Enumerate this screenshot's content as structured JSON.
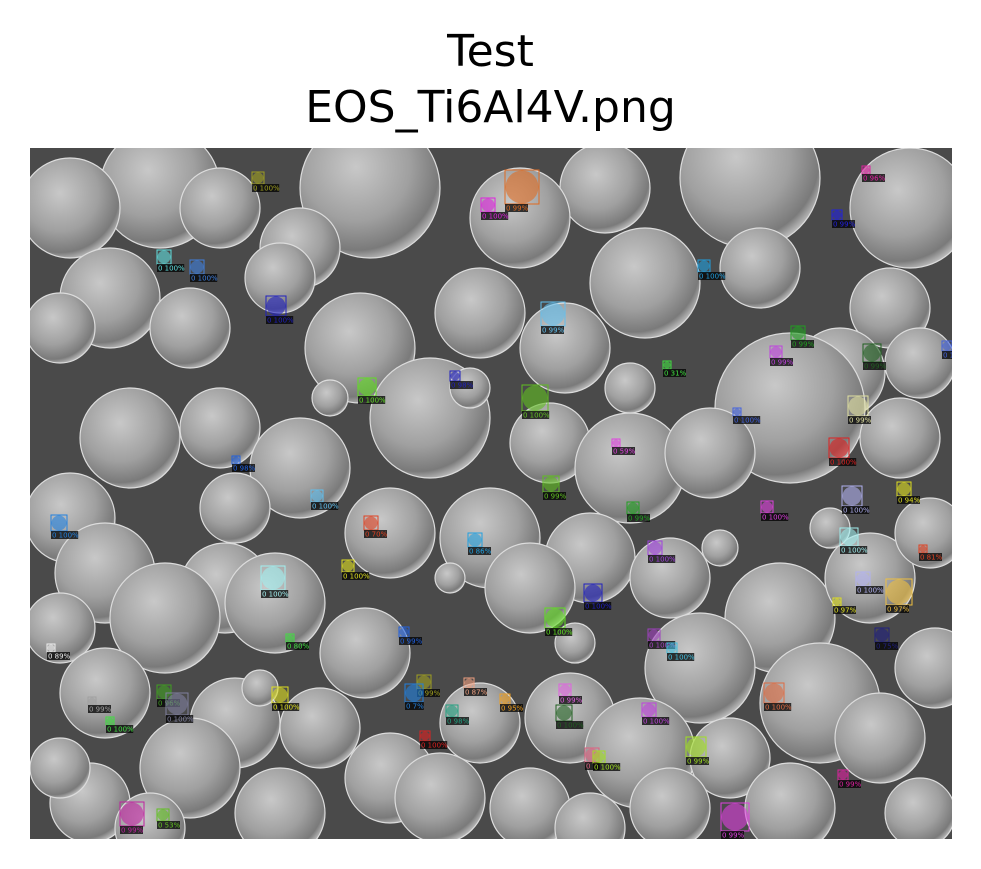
{
  "figure": {
    "title_line1": "Test",
    "title_line2": "EOS_Ti6Al4V.png"
  },
  "image": {
    "description_kind": "SEM micrograph of spherical powder particles with instance-segmentation overlays",
    "background_color": "#4a4a4a"
  },
  "detections": [
    {
      "label": "0 100%",
      "color": "#a0a020"
    },
    {
      "label": "0 99%",
      "color": "#e06a20"
    },
    {
      "label": "0 100%",
      "color": "#e020e0"
    },
    {
      "label": "0 96%",
      "color": "#e020a0"
    },
    {
      "label": "0 99%",
      "color": "#2020e0"
    },
    {
      "label": "0 100%",
      "color": "#60e0e0"
    },
    {
      "label": "0 100%",
      "color": "#4080e0"
    },
    {
      "label": "0 100%",
      "color": "#20a0e0"
    },
    {
      "label": "0 100%",
      "color": "#2020c0"
    },
    {
      "label": "0 99%",
      "color": "#60c0f0"
    },
    {
      "label": "0 99%",
      "color": "#20a020"
    },
    {
      "label": "0 99%",
      "color": "#c040e0"
    },
    {
      "label": "0 99%",
      "color": "#206020"
    },
    {
      "label": "0 100%",
      "color": "#60e020"
    },
    {
      "label": "0 98%",
      "color": "#2020c0"
    },
    {
      "label": "0 100%",
      "color": "#60c020"
    },
    {
      "label": "0 31%",
      "color": "#40e040"
    },
    {
      "label": "0 100%",
      "color": "#4060e0"
    },
    {
      "label": "0 99%",
      "color": "#e0e0a0"
    },
    {
      "label": "0 59%",
      "color": "#e040e0"
    },
    {
      "label": "0 100%",
      "color": "#e02020"
    },
    {
      "label": "0 98%",
      "color": "#2060e0"
    },
    {
      "label": "0 99%",
      "color": "#60c020"
    },
    {
      "label": "0 94%",
      "color": "#e0e020"
    },
    {
      "label": "0 100%",
      "color": "#60c0f0"
    },
    {
      "label": "0 99%",
      "color": "#20a020"
    },
    {
      "label": "0 100%",
      "color": "#e040e0"
    },
    {
      "label": "0 100%",
      "color": "#b0b0f0"
    },
    {
      "label": "0 100%",
      "color": "#2080e0"
    },
    {
      "label": "0 70%",
      "color": "#e04020"
    },
    {
      "label": "0 86%",
      "color": "#20a0e0"
    },
    {
      "label": "0 100%",
      "color": "#a040e0"
    },
    {
      "label": "0 100%",
      "color": "#a0f0f0"
    },
    {
      "label": "0 81%",
      "color": "#e04020"
    },
    {
      "label": "0 100%",
      "color": "#e0e020"
    },
    {
      "label": "0 100%",
      "color": "#a0f0f0"
    },
    {
      "label": "0 100%",
      "color": "#2020c0"
    },
    {
      "label": "0 100%",
      "color": "#b0b0f0"
    },
    {
      "label": "0 97%",
      "color": "#e0e020"
    },
    {
      "label": "0 97%",
      "color": "#f0c040"
    },
    {
      "label": "0 100%",
      "color": "#60e020"
    },
    {
      "label": "0 80%",
      "color": "#40e040"
    },
    {
      "label": "0 99%",
      "color": "#2060e0"
    },
    {
      "label": "0 100%",
      "color": "#a040c0"
    },
    {
      "label": "0 100%",
      "color": "#40c0e0"
    },
    {
      "label": "0 75%",
      "color": "#202080"
    },
    {
      "label": "0 89%",
      "color": "#f0f0f0"
    },
    {
      "label": "0 99%",
      "color": "#a0a0a0"
    },
    {
      "label": "0 96%",
      "color": "#40a020"
    },
    {
      "label": "0 100%",
      "color": "#8080a0"
    },
    {
      "label": "0 100%",
      "color": "#40e040"
    },
    {
      "label": "0 100%",
      "color": "#e0e020"
    },
    {
      "label": "0 99%",
      "color": "#a0a020"
    },
    {
      "label": "0 87%",
      "color": "#f0a080"
    },
    {
      "label": "0 7%",
      "color": "#2080e0"
    },
    {
      "label": "0 98%",
      "color": "#20a080"
    },
    {
      "label": "0 95%",
      "color": "#f0a020"
    },
    {
      "label": "0 99%",
      "color": "#e060e0"
    },
    {
      "label": "0 100%",
      "color": "#206020"
    },
    {
      "label": "0 100%",
      "color": "#c040e0"
    },
    {
      "label": "0 100%",
      "color": "#e06a40"
    },
    {
      "label": "0 100%",
      "color": "#e02020"
    },
    {
      "label": "0 99%",
      "color": "#a0e020"
    },
    {
      "label": "0 7",
      "color": "#e06080"
    },
    {
      "label": "0 100%",
      "color": "#a0e020"
    },
    {
      "label": "0 99%",
      "color": "#e020a0"
    },
    {
      "label": "0 99%",
      "color": "#c020a0"
    },
    {
      "label": "0 53%",
      "color": "#60c020"
    },
    {
      "label": "0 99%",
      "color": "#e040e0"
    },
    {
      "label": "0 1",
      "color": "#4060e0"
    }
  ]
}
